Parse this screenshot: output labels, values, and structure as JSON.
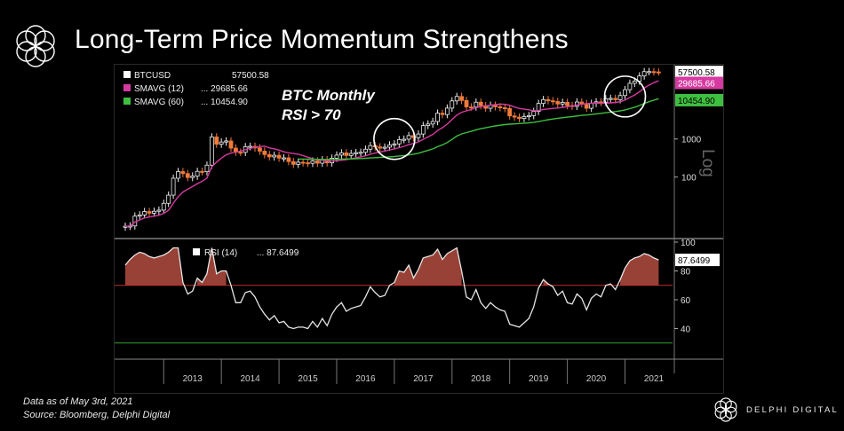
{
  "header": {
    "title": "Long-Term Price Momentum Strengthens"
  },
  "footer": {
    "note_line1": "Data as of May 3rd, 2021",
    "note_line2": "Source: Bloomberg, Delphi Digital",
    "brand": "DELPHI DIGITAL"
  },
  "colors": {
    "candle_up": "#f0f0f0",
    "candle_down": "#f07a3a",
    "sma12": "#d63aa0",
    "sma60": "#3fbf3f",
    "rsi": "#e6e6e6",
    "rsi_fill": "#a8483c",
    "rsi_line": "#c03030",
    "rsi30_line": "#2ea02e"
  },
  "chart_data": [
    {
      "type": "candlestick",
      "scale": "log",
      "annotation": "BTC Monthly\nRSI > 70",
      "axis_label": "Log",
      "ytick_labels": [
        "100",
        "1000"
      ],
      "legend": [
        {
          "name": "BTCUSD",
          "value": "57500.58",
          "color": "#ffffff"
        },
        {
          "name": "SMAVG (12)",
          "value": "...  29685.66",
          "color": "#d63aa0"
        },
        {
          "name": "SMAVG (60)",
          "value": "...  10454.90",
          "color": "#3fbf3f"
        }
      ],
      "last_value_tags": [
        {
          "text": "57500.58",
          "value": 57500.58,
          "bg": "#ffffff",
          "fg": "#000000"
        },
        {
          "text": "29685.66",
          "value": 29685.66,
          "bg": "#d63aa0",
          "fg": "#ffffff"
        },
        {
          "text": "10454.90",
          "value": 10454.9,
          "bg": "#3fbf3f",
          "fg": "#000000"
        }
      ],
      "monthly_close": {
        "start": "2012-05",
        "values": [
          5.1,
          5.2,
          9.4,
          10.1,
          12.4,
          11.2,
          12.6,
          13.5,
          20.4,
          33.4,
          93,
          139,
          123,
          97,
          106,
          141,
          138,
          205,
          1130,
          730,
          830,
          887,
          575,
          448,
          445,
          627,
          641,
          580,
          478,
          389,
          338,
          373,
          314,
          319,
          254,
          215,
          245,
          237,
          229,
          264,
          231,
          284,
          236,
          312,
          377,
          431,
          368,
          416,
          437,
          447,
          538,
          670,
          621,
          574,
          608,
          697,
          743,
          961,
          985,
          1226,
          1080,
          1348,
          2253,
          2470,
          2873,
          4747,
          4374,
          6469,
          10000,
          13063,
          10234,
          6937,
          6923,
          9240,
          7500,
          6406,
          7689,
          7010,
          6610,
          6313,
          4028,
          3742,
          3458,
          3854,
          4103,
          5279,
          8558,
          10818,
          10083,
          9630,
          8293,
          9152,
          7546,
          7190,
          9350,
          8520,
          6410,
          8620,
          9450,
          9140,
          11350,
          11650,
          10780,
          13800,
          19700,
          28990,
          33110,
          45200,
          58800,
          58900,
          57750,
          57500
        ]
      },
      "sma12_last": 29685.66,
      "sma60_last": 10454.9,
      "x_ticks": [
        "2013",
        "2014",
        "2015",
        "2016",
        "2017",
        "2018",
        "2019",
        "2020",
        "2021"
      ],
      "highlight_circles": [
        "2017",
        "2020-2021"
      ]
    },
    {
      "type": "line",
      "series": [
        {
          "name": "RSI (14)",
          "last": "87.6499"
        }
      ],
      "ylim": [
        20,
        100
      ],
      "ytick_labels": [
        "100",
        "80",
        "60",
        "40"
      ],
      "reference_lines": [
        70,
        30
      ],
      "last_value_tag": "87.6499",
      "monthly_rsi": [
        84,
        88,
        91,
        93,
        92,
        90,
        89,
        90,
        91,
        93,
        96,
        96,
        72,
        64,
        66,
        75,
        72,
        78,
        96,
        78,
        80,
        80,
        70,
        58,
        58,
        65,
        66,
        62,
        55,
        50,
        46,
        49,
        44,
        45,
        41,
        40,
        41,
        41,
        40,
        45,
        41,
        47,
        42,
        50,
        55,
        58,
        52,
        54,
        55,
        56,
        62,
        69,
        65,
        62,
        63,
        70,
        72,
        80,
        79,
        84,
        75,
        81,
        89,
        90,
        91,
        95,
        88,
        92,
        94,
        96,
        80,
        62,
        60,
        67,
        58,
        54,
        58,
        55,
        53,
        52,
        43,
        42,
        41,
        44,
        47,
        55,
        68,
        74,
        71,
        69,
        63,
        66,
        58,
        57,
        64,
        61,
        53,
        61,
        64,
        62,
        70,
        71,
        67,
        74,
        82,
        87,
        89,
        90,
        92,
        91,
        89,
        87.65
      ],
      "x_ticks": [
        "2013",
        "2014",
        "2015",
        "2016",
        "2017",
        "2018",
        "2019",
        "2020",
        "2021"
      ]
    }
  ]
}
